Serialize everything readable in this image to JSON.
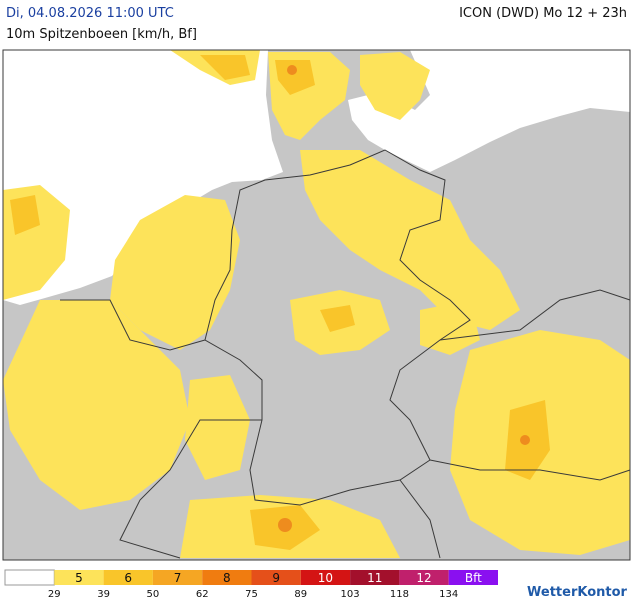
{
  "header": {
    "timestamp": "Di, 04.08.2026 11:00 UTC",
    "model": "ICON (DWD) Mo 12 + 23h",
    "subtitle": "10m Spitzenboeen [km/h, Bf]"
  },
  "legend": {
    "beaufort": [
      "5",
      "6",
      "7",
      "8",
      "9",
      "10",
      "11",
      "12",
      "Bft"
    ],
    "kmh": [
      "29",
      "39",
      "50",
      "62",
      "75",
      "89",
      "103",
      "118",
      "134"
    ]
  },
  "logo": "WetterKontor"
}
